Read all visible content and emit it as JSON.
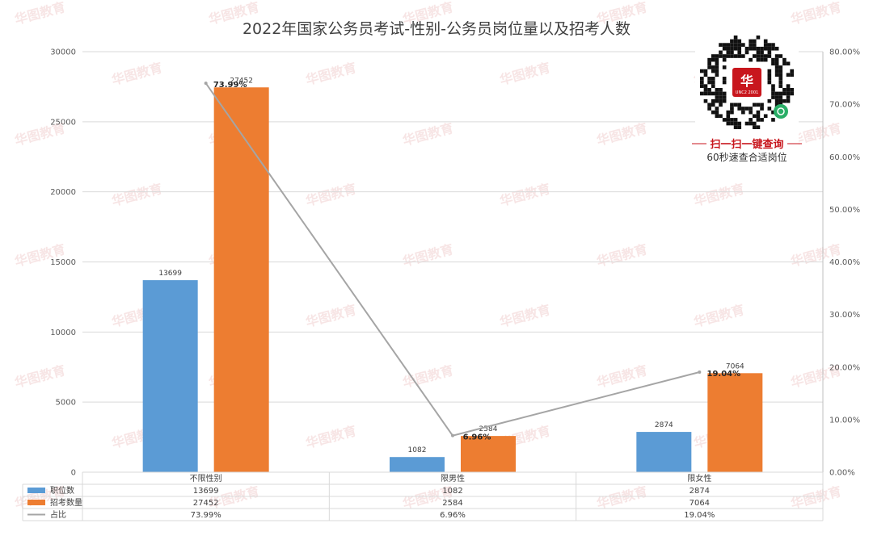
{
  "chart_data": {
    "type": "bar",
    "title": "2022年国家公务员考试-性别-公务员岗位量以及招考人数",
    "categories": [
      "不限性别",
      "限男性",
      "限女性"
    ],
    "series": [
      {
        "name": "职位数",
        "type": "bar",
        "axis": "left",
        "values": [
          13699,
          1082,
          2874
        ],
        "color": "#5b9bd5"
      },
      {
        "name": "招考数量",
        "type": "bar",
        "axis": "left",
        "values": [
          27452,
          2584,
          7064
        ],
        "color": "#ed7d31"
      },
      {
        "name": "占比",
        "type": "line",
        "axis": "right",
        "values": [
          73.99,
          6.96,
          19.04
        ],
        "labels": [
          "73.99%",
          "6.96%",
          "19.04%"
        ],
        "color": "#a5a5a5"
      }
    ],
    "ylim": [
      0,
      30000
    ],
    "yticks": [
      0,
      5000,
      10000,
      15000,
      20000,
      25000,
      30000
    ],
    "ylim_right": [
      0,
      80
    ],
    "yticks_right": [
      "0.00%",
      "10.00%",
      "20.00%",
      "30.00%",
      "40.00%",
      "50.00%",
      "60.00%",
      "70.00%",
      "80.00%"
    ],
    "grid": true,
    "legend": "data-table-below"
  },
  "qr_panel": {
    "logo_text": "UNC2 2001",
    "line1": "扫一扫一键查询",
    "line2": "60秒速查合适岗位"
  },
  "watermark": {
    "text": "华图教育",
    "color": "#e9b7b7"
  }
}
